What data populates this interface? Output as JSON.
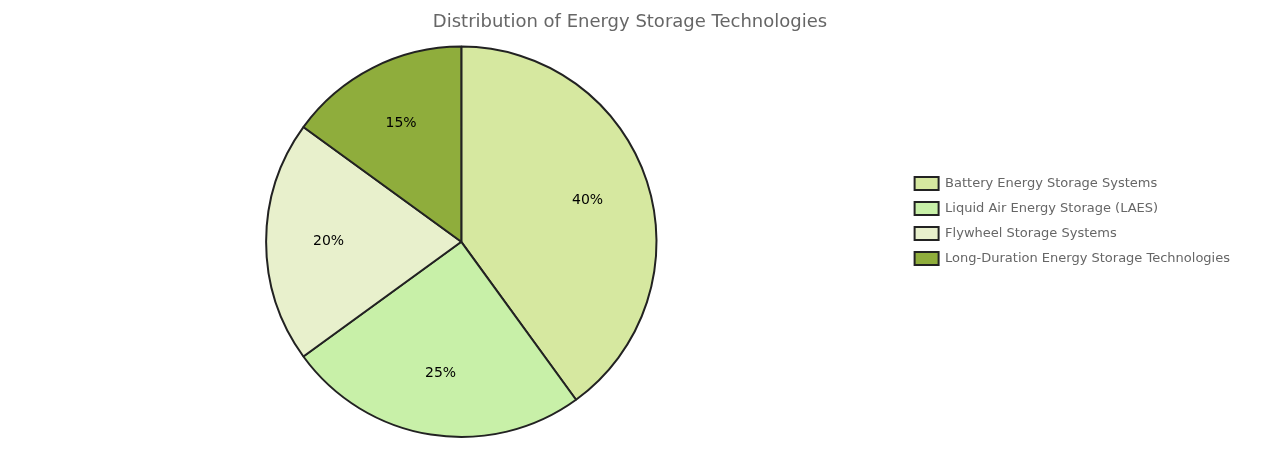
{
  "chart_data": {
    "type": "pie",
    "title": "Distribution of Energy Storage Technologies",
    "categories": [
      "Battery Energy Storage Systems",
      "Liquid Air Energy Storage (LAES)",
      "Flywheel Storage Systems",
      "Long-Duration Energy Storage Technologies"
    ],
    "values": [
      40,
      25,
      20,
      15
    ],
    "value_labels": [
      "40%",
      "25%",
      "20%",
      "15%"
    ],
    "colors": [
      "#d6e8a0",
      "#c8f0a8",
      "#e8f0cc",
      "#8fad3c"
    ],
    "data_labels": true,
    "legend": "right"
  }
}
